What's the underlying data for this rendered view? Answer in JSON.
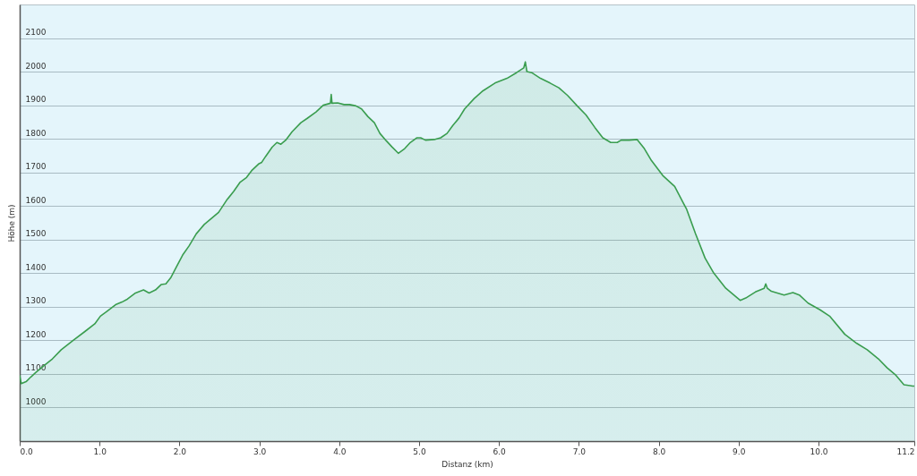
{
  "chart_data": {
    "type": "area",
    "xlabel": "Distanz  (km)",
    "ylabel": "Höhe (m)",
    "x": [
      0.0,
      0.02,
      0.08,
      0.14,
      0.2,
      0.29,
      0.41,
      0.52,
      0.67,
      0.82,
      0.94,
      1.01,
      1.09,
      1.2,
      1.28,
      1.35,
      1.45,
      1.55,
      1.62,
      1.7,
      1.77,
      1.83,
      1.89,
      1.96,
      2.04,
      2.12,
      2.21,
      2.31,
      2.42,
      2.49,
      2.59,
      2.68,
      2.76,
      2.84,
      2.91,
      2.99,
      3.03,
      3.08,
      3.16,
      3.22,
      3.27,
      3.33,
      3.41,
      3.52,
      3.6,
      3.71,
      3.8,
      3.89,
      3.9,
      3.91,
      3.98,
      4.06,
      4.13,
      4.21,
      4.28,
      4.36,
      4.44,
      4.51,
      4.59,
      4.66,
      4.74,
      4.82,
      4.89,
      4.97,
      5.02,
      5.08,
      5.19,
      5.27,
      5.35,
      5.42,
      5.5,
      5.57,
      5.69,
      5.8,
      5.95,
      6.1,
      6.22,
      6.31,
      6.33,
      6.35,
      6.41,
      6.52,
      6.64,
      6.75,
      6.86,
      6.98,
      7.09,
      7.2,
      7.3,
      7.4,
      7.48,
      7.53,
      7.63,
      7.73,
      7.82,
      7.91,
      8.05,
      8.2,
      8.27,
      8.35,
      8.46,
      8.58,
      8.69,
      8.84,
      9.02,
      9.09,
      9.21,
      9.32,
      9.34,
      9.36,
      9.41,
      9.57,
      9.68,
      9.76,
      9.87,
      10.02,
      10.14,
      10.33,
      10.48,
      10.61,
      10.75,
      10.86,
      10.97,
      11.07,
      11.18,
      11.2
    ],
    "series": [
      {
        "color": "#3a9d4f",
        "values": [
          1095,
          1071,
          1077,
          1091,
          1104,
          1122,
          1145,
          1172,
          1200,
          1227,
          1249,
          1272,
          1286,
          1306,
          1314,
          1323,
          1341,
          1350,
          1341,
          1350,
          1366,
          1368,
          1386,
          1418,
          1454,
          1481,
          1517,
          1545,
          1567,
          1581,
          1617,
          1644,
          1671,
          1685,
          1707,
          1725,
          1730,
          1748,
          1775,
          1789,
          1784,
          1796,
          1821,
          1848,
          1861,
          1880,
          1900,
          1906,
          1932,
          1906,
          1907,
          1902,
          1902,
          1898,
          1889,
          1866,
          1848,
          1816,
          1794,
          1776,
          1757,
          1771,
          1789,
          1803,
          1803,
          1796,
          1798,
          1803,
          1816,
          1839,
          1862,
          1889,
          1920,
          1943,
          1966,
          1980,
          1997,
          2011,
          2029,
          2000,
          1997,
          1980,
          1966,
          1952,
          1929,
          1898,
          1871,
          1834,
          1803,
          1789,
          1789,
          1796,
          1796,
          1798,
          1771,
          1735,
          1691,
          1658,
          1626,
          1590,
          1518,
          1445,
          1400,
          1355,
          1319,
          1326,
          1344,
          1355,
          1368,
          1355,
          1346,
          1335,
          1342,
          1335,
          1311,
          1291,
          1272,
          1218,
          1191,
          1172,
          1145,
          1118,
          1096,
          1068,
          1064,
          1064
        ]
      }
    ],
    "xlim": [
      0,
      11.2
    ],
    "ylim": [
      900,
      2200
    ],
    "xticks": [
      {
        "value": 0,
        "label": "0.0"
      },
      {
        "value": 1,
        "label": "1.0"
      },
      {
        "value": 2,
        "label": "2.0"
      },
      {
        "value": 3,
        "label": "3.0"
      },
      {
        "value": 4,
        "label": "4.0"
      },
      {
        "value": 5,
        "label": "5.0"
      },
      {
        "value": 6,
        "label": "6.0"
      },
      {
        "value": 7,
        "label": "7.0"
      },
      {
        "value": 8,
        "label": "8.0"
      },
      {
        "value": 9,
        "label": "9.0"
      },
      {
        "value": 10,
        "label": "10.0"
      },
      11.2
    ],
    "yticks": [
      1000,
      1100,
      1200,
      1300,
      1400,
      1500,
      1600,
      1700,
      1800,
      1900,
      2000,
      2100
    ],
    "grid": "y"
  }
}
